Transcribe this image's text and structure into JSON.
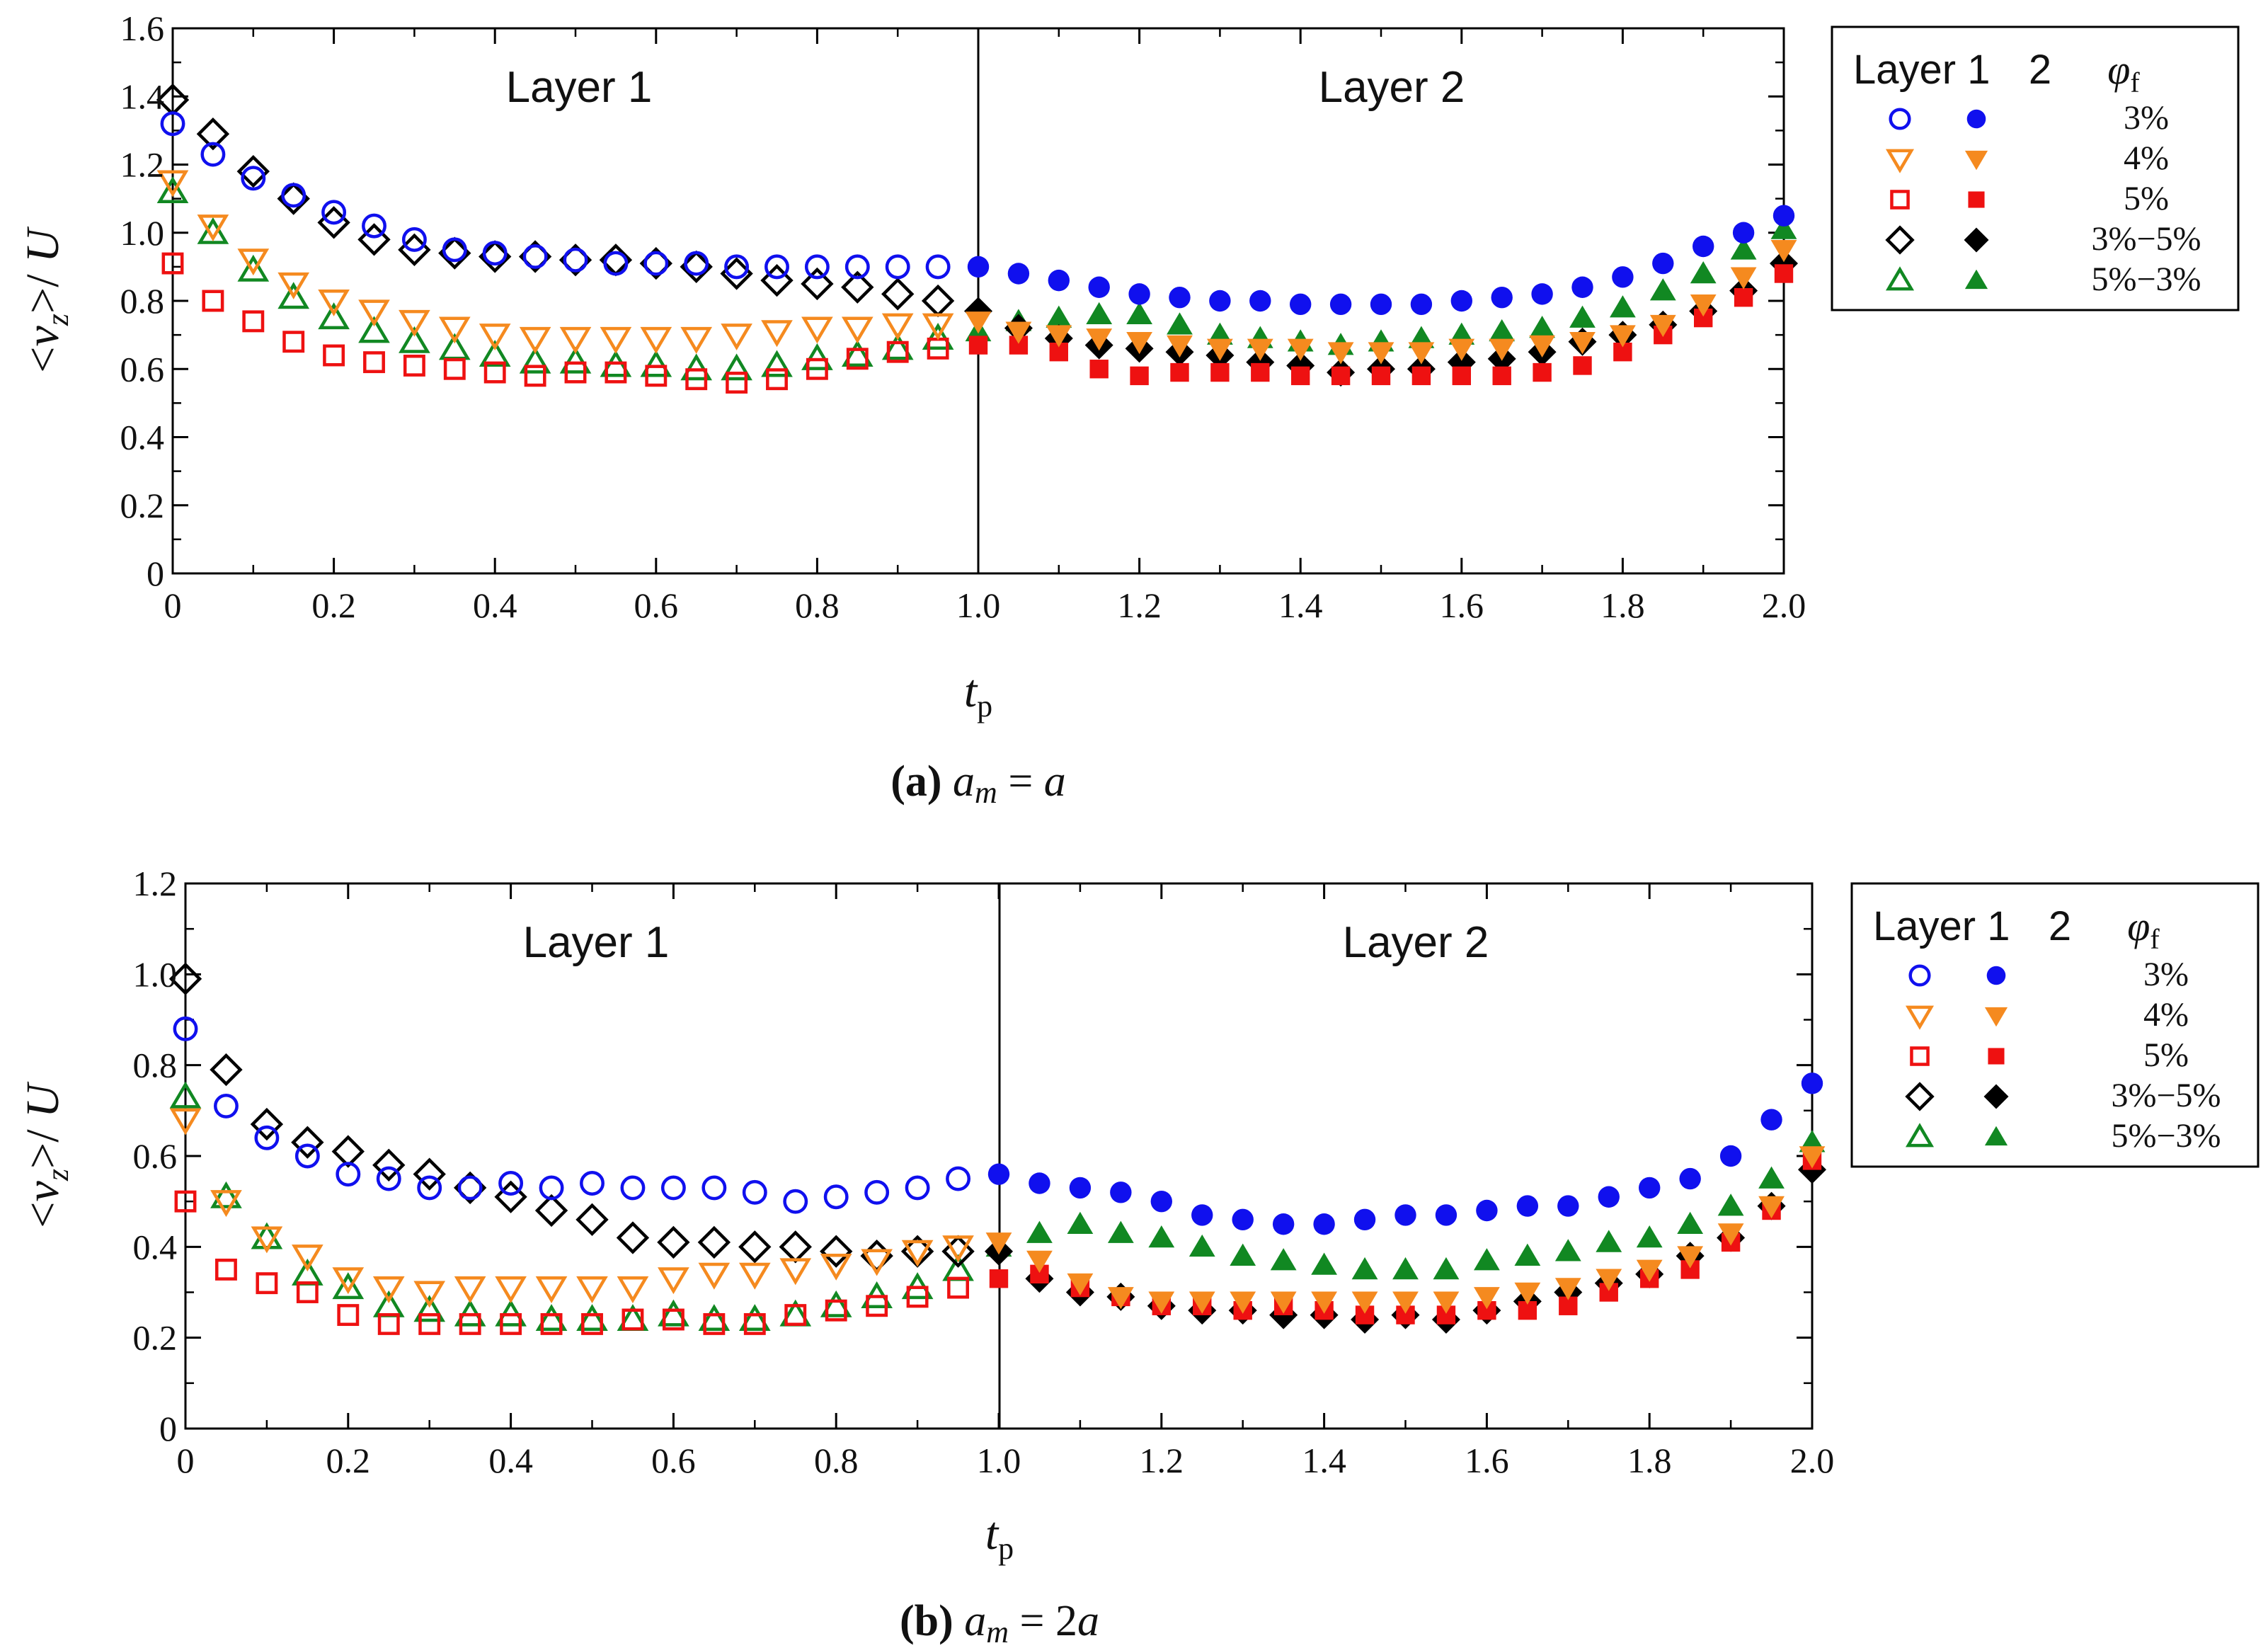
{
  "figure": {
    "colors": {
      "blue": "#1010ee",
      "orange": "#f58a1f",
      "red": "#ee1111",
      "black": "#000000",
      "green": "#118822"
    }
  },
  "chart_data": [
    {
      "type": "scatter",
      "panel": "a",
      "caption_letter": "(a)",
      "caption_expr": "a_m = a",
      "xlabel": "t_p",
      "ylabel": "<v_z>/ U",
      "xlim": [
        0,
        2
      ],
      "ylim": [
        0,
        1.6
      ],
      "xticks": [
        "0",
        "0.2",
        "0.4",
        "0.6",
        "0.8",
        "1.0",
        "1.2",
        "1.4",
        "1.6",
        "1.8",
        "2.0"
      ],
      "yticks": [
        "0",
        "0.2",
        "0.4",
        "0.6",
        "0.8",
        "1.0",
        "1.2",
        "1.4",
        "1.6"
      ],
      "layer_labels": [
        "Layer 1",
        "Layer 2"
      ],
      "legend": {
        "header": [
          "Layer 1",
          "2",
          "φ_f"
        ],
        "entries": [
          "3%",
          "4%",
          "5%",
          "3%−5%",
          "5%−3%"
        ]
      },
      "x": [
        0,
        0.05,
        0.1,
        0.15,
        0.2,
        0.25,
        0.3,
        0.35,
        0.4,
        0.45,
        0.5,
        0.55,
        0.6,
        0.65,
        0.7,
        0.75,
        0.8,
        0.85,
        0.9,
        0.95,
        1.0,
        1.05,
        1.1,
        1.15,
        1.2,
        1.25,
        1.3,
        1.35,
        1.4,
        1.45,
        1.5,
        1.55,
        1.6,
        1.65,
        1.7,
        1.75,
        1.8,
        1.85,
        1.9,
        1.95,
        2.0
      ],
      "series": [
        {
          "name": "3%",
          "color": "blue",
          "marker": "circle",
          "values": [
            1.32,
            1.23,
            1.16,
            1.11,
            1.06,
            1.02,
            0.98,
            0.95,
            0.94,
            0.93,
            0.92,
            0.91,
            0.91,
            0.91,
            0.9,
            0.9,
            0.9,
            0.9,
            0.9,
            0.9,
            0.9,
            0.88,
            0.86,
            0.84,
            0.82,
            0.81,
            0.8,
            0.8,
            0.79,
            0.79,
            0.79,
            0.79,
            0.8,
            0.81,
            0.82,
            0.84,
            0.87,
            0.91,
            0.96,
            1.0,
            1.05
          ]
        },
        {
          "name": "4%",
          "color": "orange",
          "marker": "triangle-down",
          "values": [
            1.15,
            1.02,
            0.92,
            0.85,
            0.8,
            0.77,
            0.74,
            0.72,
            0.7,
            0.69,
            0.69,
            0.69,
            0.69,
            0.69,
            0.7,
            0.71,
            0.72,
            0.72,
            0.73,
            0.73,
            0.74,
            0.71,
            0.7,
            0.69,
            0.68,
            0.67,
            0.66,
            0.66,
            0.66,
            0.65,
            0.65,
            0.65,
            0.66,
            0.66,
            0.67,
            0.68,
            0.7,
            0.73,
            0.79,
            0.87,
            0.95
          ]
        },
        {
          "name": "5%",
          "color": "red",
          "marker": "square",
          "values": [
            0.91,
            0.8,
            0.74,
            0.68,
            0.64,
            0.62,
            0.61,
            0.6,
            0.59,
            0.58,
            0.59,
            0.59,
            0.58,
            0.57,
            0.56,
            0.57,
            0.6,
            0.63,
            0.65,
            0.66,
            0.67,
            0.67,
            0.65,
            0.6,
            0.58,
            0.59,
            0.59,
            0.59,
            0.58,
            0.58,
            0.58,
            0.58,
            0.58,
            0.58,
            0.59,
            0.61,
            0.65,
            0.7,
            0.75,
            0.81,
            0.88
          ]
        },
        {
          "name": "3%−5%",
          "color": "black",
          "marker": "diamond",
          "values": [
            1.39,
            1.29,
            1.18,
            1.1,
            1.03,
            0.98,
            0.95,
            0.94,
            0.93,
            0.93,
            0.92,
            0.92,
            0.91,
            0.9,
            0.88,
            0.86,
            0.85,
            0.84,
            0.82,
            0.8,
            0.77,
            0.72,
            0.69,
            0.67,
            0.66,
            0.65,
            0.64,
            0.62,
            0.61,
            0.59,
            0.6,
            0.6,
            0.62,
            0.63,
            0.65,
            0.68,
            0.7,
            0.73,
            0.77,
            0.83,
            0.91
          ]
        },
        {
          "name": "5%−3%",
          "color": "green",
          "marker": "triangle-up",
          "values": [
            1.12,
            1.0,
            0.89,
            0.81,
            0.75,
            0.71,
            0.68,
            0.66,
            0.64,
            0.62,
            0.62,
            0.61,
            0.61,
            0.6,
            0.6,
            0.61,
            0.63,
            0.64,
            0.66,
            0.69,
            0.71,
            0.74,
            0.75,
            0.76,
            0.76,
            0.73,
            0.7,
            0.69,
            0.68,
            0.67,
            0.68,
            0.69,
            0.7,
            0.71,
            0.72,
            0.75,
            0.78,
            0.83,
            0.88,
            0.95,
            1.01
          ]
        }
      ]
    },
    {
      "type": "scatter",
      "panel": "b",
      "caption_letter": "(b)",
      "caption_expr": "a_m = 2a",
      "xlabel": "t_p",
      "ylabel": "<v_z>/ U",
      "xlim": [
        0,
        2
      ],
      "ylim": [
        0,
        1.2
      ],
      "xticks": [
        "0",
        "0.2",
        "0.4",
        "0.6",
        "0.8",
        "1.0",
        "1.2",
        "1.4",
        "1.6",
        "1.8",
        "2.0"
      ],
      "yticks": [
        "0",
        "0.2",
        "0.4",
        "0.6",
        "0.8",
        "1.0",
        "1.2"
      ],
      "layer_labels": [
        "Layer 1",
        "Layer 2"
      ],
      "legend": {
        "header": [
          "Layer 1",
          "2",
          "φ_f"
        ],
        "entries": [
          "3%",
          "4%",
          "5%",
          "3%−5%",
          "5%−3%"
        ]
      },
      "x": [
        0,
        0.05,
        0.1,
        0.15,
        0.2,
        0.25,
        0.3,
        0.35,
        0.4,
        0.45,
        0.5,
        0.55,
        0.6,
        0.65,
        0.7,
        0.75,
        0.8,
        0.85,
        0.9,
        0.95,
        1.0,
        1.05,
        1.1,
        1.15,
        1.2,
        1.25,
        1.3,
        1.35,
        1.4,
        1.45,
        1.5,
        1.55,
        1.6,
        1.65,
        1.7,
        1.75,
        1.8,
        1.85,
        1.9,
        1.95,
        2.0
      ],
      "series": [
        {
          "name": "3%",
          "color": "blue",
          "marker": "circle",
          "values": [
            0.88,
            0.71,
            0.64,
            0.6,
            0.56,
            0.55,
            0.53,
            0.53,
            0.54,
            0.53,
            0.54,
            0.53,
            0.53,
            0.53,
            0.52,
            0.5,
            0.51,
            0.52,
            0.53,
            0.55,
            0.56,
            0.54,
            0.53,
            0.52,
            0.5,
            0.47,
            0.46,
            0.45,
            0.45,
            0.46,
            0.47,
            0.47,
            0.48,
            0.49,
            0.49,
            0.51,
            0.53,
            0.55,
            0.6,
            0.68,
            0.76
          ]
        },
        {
          "name": "4%",
          "color": "orange",
          "marker": "triangle-down",
          "values": [
            0.68,
            0.5,
            0.42,
            0.38,
            0.33,
            0.31,
            0.3,
            0.31,
            0.31,
            0.31,
            0.31,
            0.31,
            0.33,
            0.34,
            0.34,
            0.35,
            0.36,
            0.37,
            0.39,
            0.4,
            0.41,
            0.37,
            0.32,
            0.29,
            0.28,
            0.28,
            0.28,
            0.28,
            0.28,
            0.28,
            0.28,
            0.28,
            0.29,
            0.3,
            0.31,
            0.33,
            0.35,
            0.38,
            0.43,
            0.49,
            0.6
          ]
        },
        {
          "name": "5%",
          "color": "red",
          "marker": "square",
          "values": [
            0.5,
            0.35,
            0.32,
            0.3,
            0.25,
            0.23,
            0.23,
            0.23,
            0.23,
            0.23,
            0.23,
            0.24,
            0.24,
            0.23,
            0.23,
            0.25,
            0.26,
            0.27,
            0.29,
            0.31,
            0.33,
            0.34,
            0.31,
            0.29,
            0.27,
            0.27,
            0.26,
            0.27,
            0.26,
            0.25,
            0.25,
            0.25,
            0.26,
            0.26,
            0.27,
            0.3,
            0.33,
            0.35,
            0.41,
            0.48,
            0.59
          ]
        },
        {
          "name": "3%−5%",
          "color": "black",
          "marker": "diamond",
          "values": [
            0.99,
            0.79,
            0.67,
            0.63,
            0.61,
            0.58,
            0.56,
            0.53,
            0.51,
            0.48,
            0.46,
            0.42,
            0.41,
            0.41,
            0.4,
            0.4,
            0.39,
            0.38,
            0.39,
            0.39,
            0.39,
            0.33,
            0.3,
            0.29,
            0.27,
            0.26,
            0.26,
            0.25,
            0.25,
            0.24,
            0.25,
            0.24,
            0.26,
            0.28,
            0.3,
            0.32,
            0.34,
            0.38,
            0.42,
            0.49,
            0.57
          ]
        },
        {
          "name": "5%−3%",
          "color": "green",
          "marker": "triangle-up",
          "values": [
            0.73,
            0.51,
            0.42,
            0.34,
            0.31,
            0.27,
            0.26,
            0.25,
            0.25,
            0.24,
            0.24,
            0.24,
            0.25,
            0.24,
            0.24,
            0.25,
            0.27,
            0.29,
            0.31,
            0.35,
            0.4,
            0.43,
            0.45,
            0.43,
            0.42,
            0.4,
            0.38,
            0.37,
            0.36,
            0.35,
            0.35,
            0.35,
            0.37,
            0.38,
            0.39,
            0.41,
            0.42,
            0.45,
            0.49,
            0.55,
            0.63
          ]
        }
      ]
    }
  ]
}
